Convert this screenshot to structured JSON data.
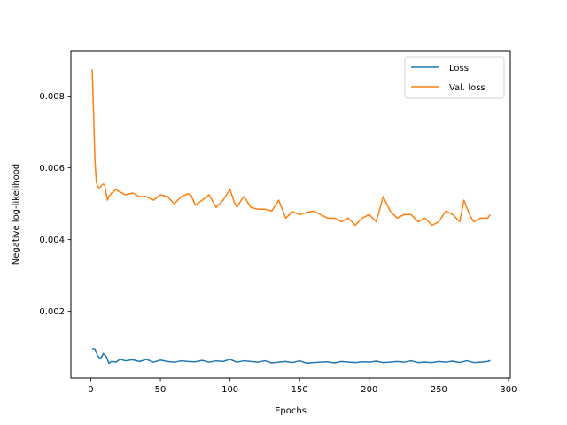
{
  "chart_data": {
    "type": "line",
    "xlabel": "Epochs",
    "ylabel": "Negative log-likelihood",
    "xlim": [
      -14.3,
      301.3
    ],
    "ylim": [
      0.00014,
      0.00925
    ],
    "xticks": [
      0,
      50,
      100,
      150,
      200,
      250,
      300
    ],
    "xtick_labels": [
      "0",
      "50",
      "100",
      "150",
      "200",
      "250",
      "300"
    ],
    "yticks": [
      0.002,
      0.004,
      0.006,
      0.008
    ],
    "ytick_labels": [
      "0.002",
      "0.004",
      "0.006",
      "0.008"
    ],
    "grid": false,
    "legend_position": "upper-right",
    "series": [
      {
        "name": "Loss",
        "color": "#1f77b4",
        "x": [
          1,
          3,
          5,
          7,
          9,
          11,
          13,
          15,
          18,
          21,
          25,
          30,
          35,
          40,
          45,
          50,
          55,
          60,
          65,
          70,
          75,
          80,
          85,
          90,
          95,
          100,
          105,
          110,
          115,
          120,
          125,
          130,
          135,
          140,
          145,
          150,
          155,
          160,
          165,
          170,
          175,
          180,
          185,
          190,
          195,
          200,
          205,
          210,
          215,
          220,
          225,
          230,
          235,
          240,
          245,
          250,
          255,
          260,
          265,
          270,
          275,
          280,
          285,
          287
        ],
        "values": [
          0.00096,
          0.00095,
          0.00075,
          0.00068,
          0.00082,
          0.00075,
          0.00055,
          0.0006,
          0.00058,
          0.00066,
          0.00062,
          0.00065,
          0.0006,
          0.00066,
          0.00058,
          0.00064,
          0.0006,
          0.00058,
          0.00062,
          0.0006,
          0.00059,
          0.00063,
          0.00058,
          0.00062,
          0.0006,
          0.00066,
          0.00058,
          0.00062,
          0.0006,
          0.00058,
          0.00062,
          0.00056,
          0.00058,
          0.0006,
          0.00057,
          0.00062,
          0.00055,
          0.00057,
          0.00058,
          0.00059,
          0.00056,
          0.0006,
          0.00058,
          0.00057,
          0.00059,
          0.00058,
          0.00061,
          0.00057,
          0.00058,
          0.0006,
          0.00058,
          0.00062,
          0.00057,
          0.00058,
          0.00057,
          0.0006,
          0.00058,
          0.00061,
          0.00057,
          0.00062,
          0.00057,
          0.00058,
          0.0006,
          0.00063
        ]
      },
      {
        "name": "Val. loss",
        "color": "#ff7f0e",
        "x": [
          1,
          2,
          3,
          4,
          5,
          6,
          7,
          8,
          9,
          10,
          11,
          12,
          13,
          15,
          18,
          20,
          25,
          30,
          35,
          40,
          45,
          50,
          55,
          60,
          65,
          70,
          72,
          75,
          80,
          85,
          90,
          95,
          100,
          103,
          105,
          108,
          110,
          115,
          120,
          125,
          130,
          135,
          140,
          145,
          150,
          155,
          160,
          165,
          170,
          175,
          180,
          185,
          190,
          195,
          200,
          205,
          210,
          215,
          220,
          225,
          230,
          235,
          240,
          245,
          250,
          255,
          260,
          265,
          268,
          272,
          275,
          280,
          285,
          287
        ],
        "values": [
          0.00875,
          0.0075,
          0.0062,
          0.0056,
          0.00548,
          0.00545,
          0.00547,
          0.00552,
          0.00555,
          0.00553,
          0.0053,
          0.0051,
          0.0052,
          0.0053,
          0.0054,
          0.00535,
          0.00525,
          0.0053,
          0.0052,
          0.0052,
          0.0051,
          0.00525,
          0.0052,
          0.005,
          0.0052,
          0.00528,
          0.00524,
          0.00496,
          0.0051,
          0.00525,
          0.0049,
          0.0051,
          0.0054,
          0.00505,
          0.0049,
          0.0051,
          0.0052,
          0.0049,
          0.00485,
          0.00485,
          0.0048,
          0.0051,
          0.0046,
          0.00478,
          0.0047,
          0.00476,
          0.0048,
          0.0047,
          0.0046,
          0.0046,
          0.0045,
          0.0046,
          0.0044,
          0.0046,
          0.0047,
          0.0045,
          0.0052,
          0.0048,
          0.0046,
          0.0047,
          0.0047,
          0.0045,
          0.0046,
          0.0044,
          0.0045,
          0.0048,
          0.0047,
          0.0045,
          0.0051,
          0.0047,
          0.0045,
          0.0046,
          0.0046,
          0.0047
        ]
      }
    ]
  }
}
